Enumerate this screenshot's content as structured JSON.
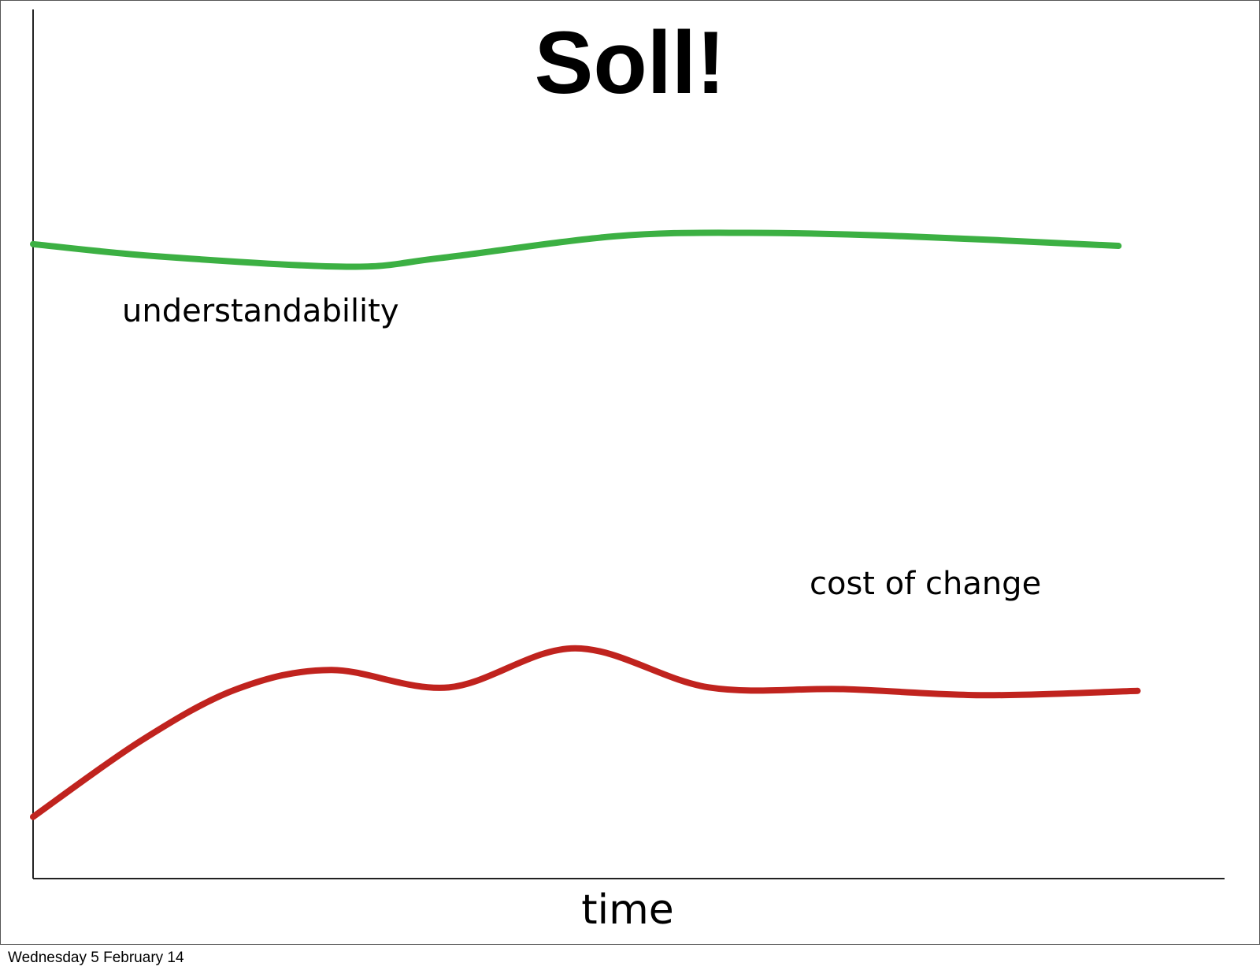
{
  "chart_data": {
    "type": "line",
    "title": "Soll!",
    "x_label": "time",
    "xlim": [
      0,
      100
    ],
    "ylim": [
      0,
      100
    ],
    "series": [
      {
        "name": "understandability",
        "color": "#3cb043",
        "x": [
          0,
          10.4,
          26.3,
          34.2,
          48.8,
          60.0,
          73.2,
          91.1
        ],
        "values": [
          73.0,
          71.6,
          70.4,
          71.4,
          73.9,
          74.3,
          73.9,
          72.8
        ]
      },
      {
        "name": "cost of change",
        "color": "#c0231e",
        "x": [
          0,
          9.1,
          17.1,
          25.0,
          34.9,
          45.5,
          56.7,
          68.0,
          79.8,
          92.7
        ],
        "values": [
          7.1,
          15.9,
          21.8,
          24.0,
          22.0,
          26.5,
          22.0,
          21.8,
          21.1,
          21.6
        ]
      }
    ]
  },
  "footer": "Wednesday 5 February 14"
}
